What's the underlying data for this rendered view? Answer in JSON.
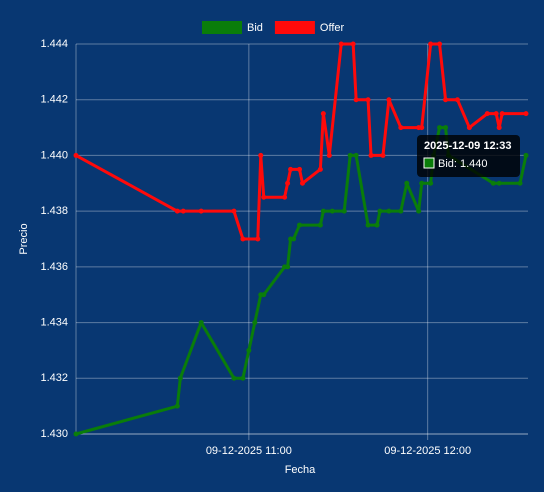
{
  "chart_data": {
    "type": "line",
    "xlabel": "Fecha",
    "ylabel": "Precio",
    "xlim": [
      "2025-12-09 10:02",
      "2025-12-09 12:33"
    ],
    "xticks": [
      {
        "value": "2025-12-09 11:00",
        "label": "09-12-2025 11:00"
      },
      {
        "value": "2025-12-09 12:00",
        "label": "09-12-2025 12:00"
      }
    ],
    "ylim": [
      1.43,
      1.444
    ],
    "yticks": [
      {
        "value": 1.43,
        "label": "1.430"
      },
      {
        "value": 1.432,
        "label": "1.432"
      },
      {
        "value": 1.434,
        "label": "1.434"
      },
      {
        "value": 1.436,
        "label": "1.436"
      },
      {
        "value": 1.438,
        "label": "1.438"
      },
      {
        "value": 1.44,
        "label": "1.440"
      },
      {
        "value": 1.442,
        "label": "1.442"
      },
      {
        "value": 1.444,
        "label": "1.444"
      }
    ],
    "grid": true,
    "legend": "top",
    "series": [
      {
        "name": "Bid",
        "color": "#0a7d0a",
        "x": [
          "2025-12-09 10:02",
          "2025-12-09 10:36",
          "2025-12-09 10:37",
          "2025-12-09 10:44",
          "2025-12-09 10:55",
          "2025-12-09 10:58",
          "2025-12-09 11:00",
          "2025-12-09 11:02",
          "2025-12-09 11:04",
          "2025-12-09 11:05",
          "2025-12-09 11:12",
          "2025-12-09 11:13",
          "2025-12-09 11:14",
          "2025-12-09 11:15",
          "2025-12-09 11:17",
          "2025-12-09 11:24",
          "2025-12-09 11:25",
          "2025-12-09 11:28",
          "2025-12-09 11:32",
          "2025-12-09 11:34",
          "2025-12-09 11:36",
          "2025-12-09 11:40",
          "2025-12-09 11:43",
          "2025-12-09 11:44",
          "2025-12-09 11:47",
          "2025-12-09 11:51",
          "2025-12-09 11:53",
          "2025-12-09 11:57",
          "2025-12-09 11:58",
          "2025-12-09 12:01",
          "2025-12-09 12:02",
          "2025-12-09 12:04",
          "2025-12-09 12:06",
          "2025-12-09 12:07",
          "2025-12-09 12:22",
          "2025-12-09 12:24",
          "2025-12-09 12:31",
          "2025-12-09 12:33"
        ],
        "values": [
          1.43,
          1.431,
          1.432,
          1.434,
          1.432,
          1.432,
          1.433,
          1.434,
          1.435,
          1.435,
          1.436,
          1.436,
          1.437,
          1.437,
          1.4375,
          1.4375,
          1.438,
          1.438,
          1.438,
          1.44,
          1.44,
          1.4375,
          1.4375,
          1.438,
          1.438,
          1.438,
          1.439,
          1.438,
          1.439,
          1.439,
          1.44,
          1.441,
          1.441,
          1.44,
          1.439,
          1.439,
          1.439,
          1.44
        ]
      },
      {
        "name": "Offer",
        "color": "#ff0a0a",
        "x": [
          "2025-12-09 10:02",
          "2025-12-09 10:36",
          "2025-12-09 10:38",
          "2025-12-09 10:44",
          "2025-12-09 10:55",
          "2025-12-09 10:58",
          "2025-12-09 11:03",
          "2025-12-09 11:04",
          "2025-12-09 11:05",
          "2025-12-09 11:12",
          "2025-12-09 11:13",
          "2025-12-09 11:14",
          "2025-12-09 11:17",
          "2025-12-09 11:18",
          "2025-12-09 11:24",
          "2025-12-09 11:25",
          "2025-12-09 11:27",
          "2025-12-09 11:31",
          "2025-12-09 11:35",
          "2025-12-09 11:36",
          "2025-12-09 11:40",
          "2025-12-09 11:41",
          "2025-12-09 11:45",
          "2025-12-09 11:47",
          "2025-12-09 11:51",
          "2025-12-09 11:57",
          "2025-12-09 11:58",
          "2025-12-09 12:01",
          "2025-12-09 12:04",
          "2025-12-09 12:06",
          "2025-12-09 12:10",
          "2025-12-09 12:14",
          "2025-12-09 12:20",
          "2025-12-09 12:23",
          "2025-12-09 12:24",
          "2025-12-09 12:25",
          "2025-12-09 12:33"
        ],
        "values": [
          1.44,
          1.438,
          1.438,
          1.438,
          1.438,
          1.437,
          1.437,
          1.44,
          1.4385,
          1.4385,
          1.439,
          1.4395,
          1.4395,
          1.439,
          1.4395,
          1.4415,
          1.44,
          1.444,
          1.444,
          1.442,
          1.442,
          1.44,
          1.44,
          1.442,
          1.441,
          1.441,
          1.441,
          1.444,
          1.444,
          1.442,
          1.442,
          1.441,
          1.4415,
          1.4415,
          1.441,
          1.4415,
          1.4415
        ]
      }
    ],
    "tooltip": {
      "title": "2025-12-09 12:33",
      "label": "Bid: 1.440"
    }
  }
}
